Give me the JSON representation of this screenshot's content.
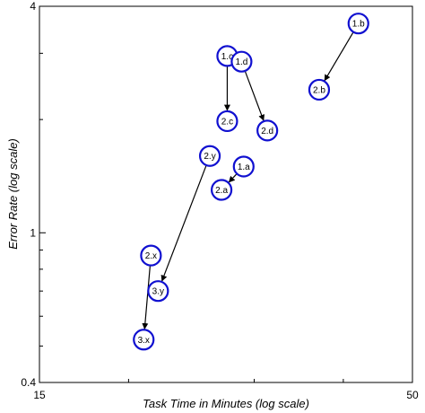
{
  "chart_data": {
    "type": "scatter",
    "title": "",
    "xlabel": "Task Time in Minutes (log scale)",
    "ylabel": "Error Rate (log scale)",
    "xscale": "log",
    "yscale": "log",
    "xlim": [
      15,
      50
    ],
    "ylim": [
      0.4,
      4
    ],
    "x_tick_labels": [
      {
        "value": 15,
        "label": "15"
      },
      {
        "value": 50,
        "label": "50"
      }
    ],
    "y_tick_labels": [
      {
        "value": 0.4,
        "label": "0.4"
      },
      {
        "value": 1,
        "label": "1"
      },
      {
        "value": 4,
        "label": "4"
      }
    ],
    "grid": false,
    "marker_color": "#1010d0",
    "arrow_color": "#000000",
    "points": [
      {
        "id": "1.a",
        "label": "1.a",
        "x": 29.0,
        "y": 1.5
      },
      {
        "id": "2.a",
        "label": "2.a",
        "x": 27.0,
        "y": 1.3
      },
      {
        "id": "1.b",
        "label": "1.b",
        "x": 42.0,
        "y": 3.6
      },
      {
        "id": "2.b",
        "label": "2.b",
        "x": 37.0,
        "y": 2.4
      },
      {
        "id": "1.c",
        "label": "1.c",
        "x": 27.5,
        "y": 2.95
      },
      {
        "id": "2.c",
        "label": "2.c",
        "x": 27.5,
        "y": 1.98
      },
      {
        "id": "1.d",
        "label": "1.d",
        "x": 28.8,
        "y": 2.85
      },
      {
        "id": "2.d",
        "label": "2.d",
        "x": 31.3,
        "y": 1.87
      },
      {
        "id": "2.x",
        "label": "2.x",
        "x": 21.5,
        "y": 0.87
      },
      {
        "id": "3.x",
        "label": "3.x",
        "x": 21.0,
        "y": 0.52
      },
      {
        "id": "2.y",
        "label": "2.y",
        "x": 26.0,
        "y": 1.6
      },
      {
        "id": "3.y",
        "label": "3.y",
        "x": 22.0,
        "y": 0.7
      }
    ],
    "arrows": [
      {
        "from": "1.a",
        "to": "2.a"
      },
      {
        "from": "1.b",
        "to": "2.b"
      },
      {
        "from": "1.c",
        "to": "2.c"
      },
      {
        "from": "1.d",
        "to": "2.d"
      },
      {
        "from": "2.x",
        "to": "3.x"
      },
      {
        "from": "2.y",
        "to": "3.y"
      }
    ]
  }
}
